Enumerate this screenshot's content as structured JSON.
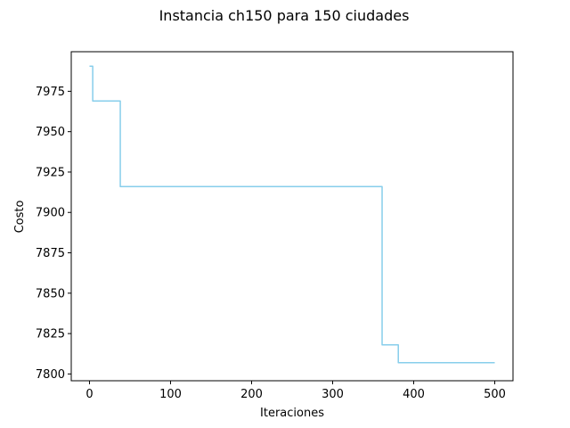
{
  "chart_data": {
    "type": "line",
    "title": "Instancia ch150 para 150 ciudades",
    "xlabel": "Iteraciones",
    "ylabel": "Costo",
    "xlim": [
      -22.5,
      522.5
    ],
    "ylim": [
      7795.8,
      7999.5
    ],
    "xticks": [
      0,
      100,
      200,
      300,
      400,
      500
    ],
    "yticks": [
      7800,
      7825,
      7850,
      7875,
      7900,
      7925,
      7950,
      7975
    ],
    "grid": false,
    "legend": "none",
    "series": [
      {
        "name": "costo",
        "color": "#87ceeb",
        "x": [
          0,
          4,
          4,
          38,
          38,
          361,
          361,
          381,
          381,
          500
        ],
        "y": [
          7990.5,
          7990.5,
          7969,
          7969,
          7916,
          7916,
          7818,
          7818,
          7807,
          7807
        ]
      }
    ]
  }
}
